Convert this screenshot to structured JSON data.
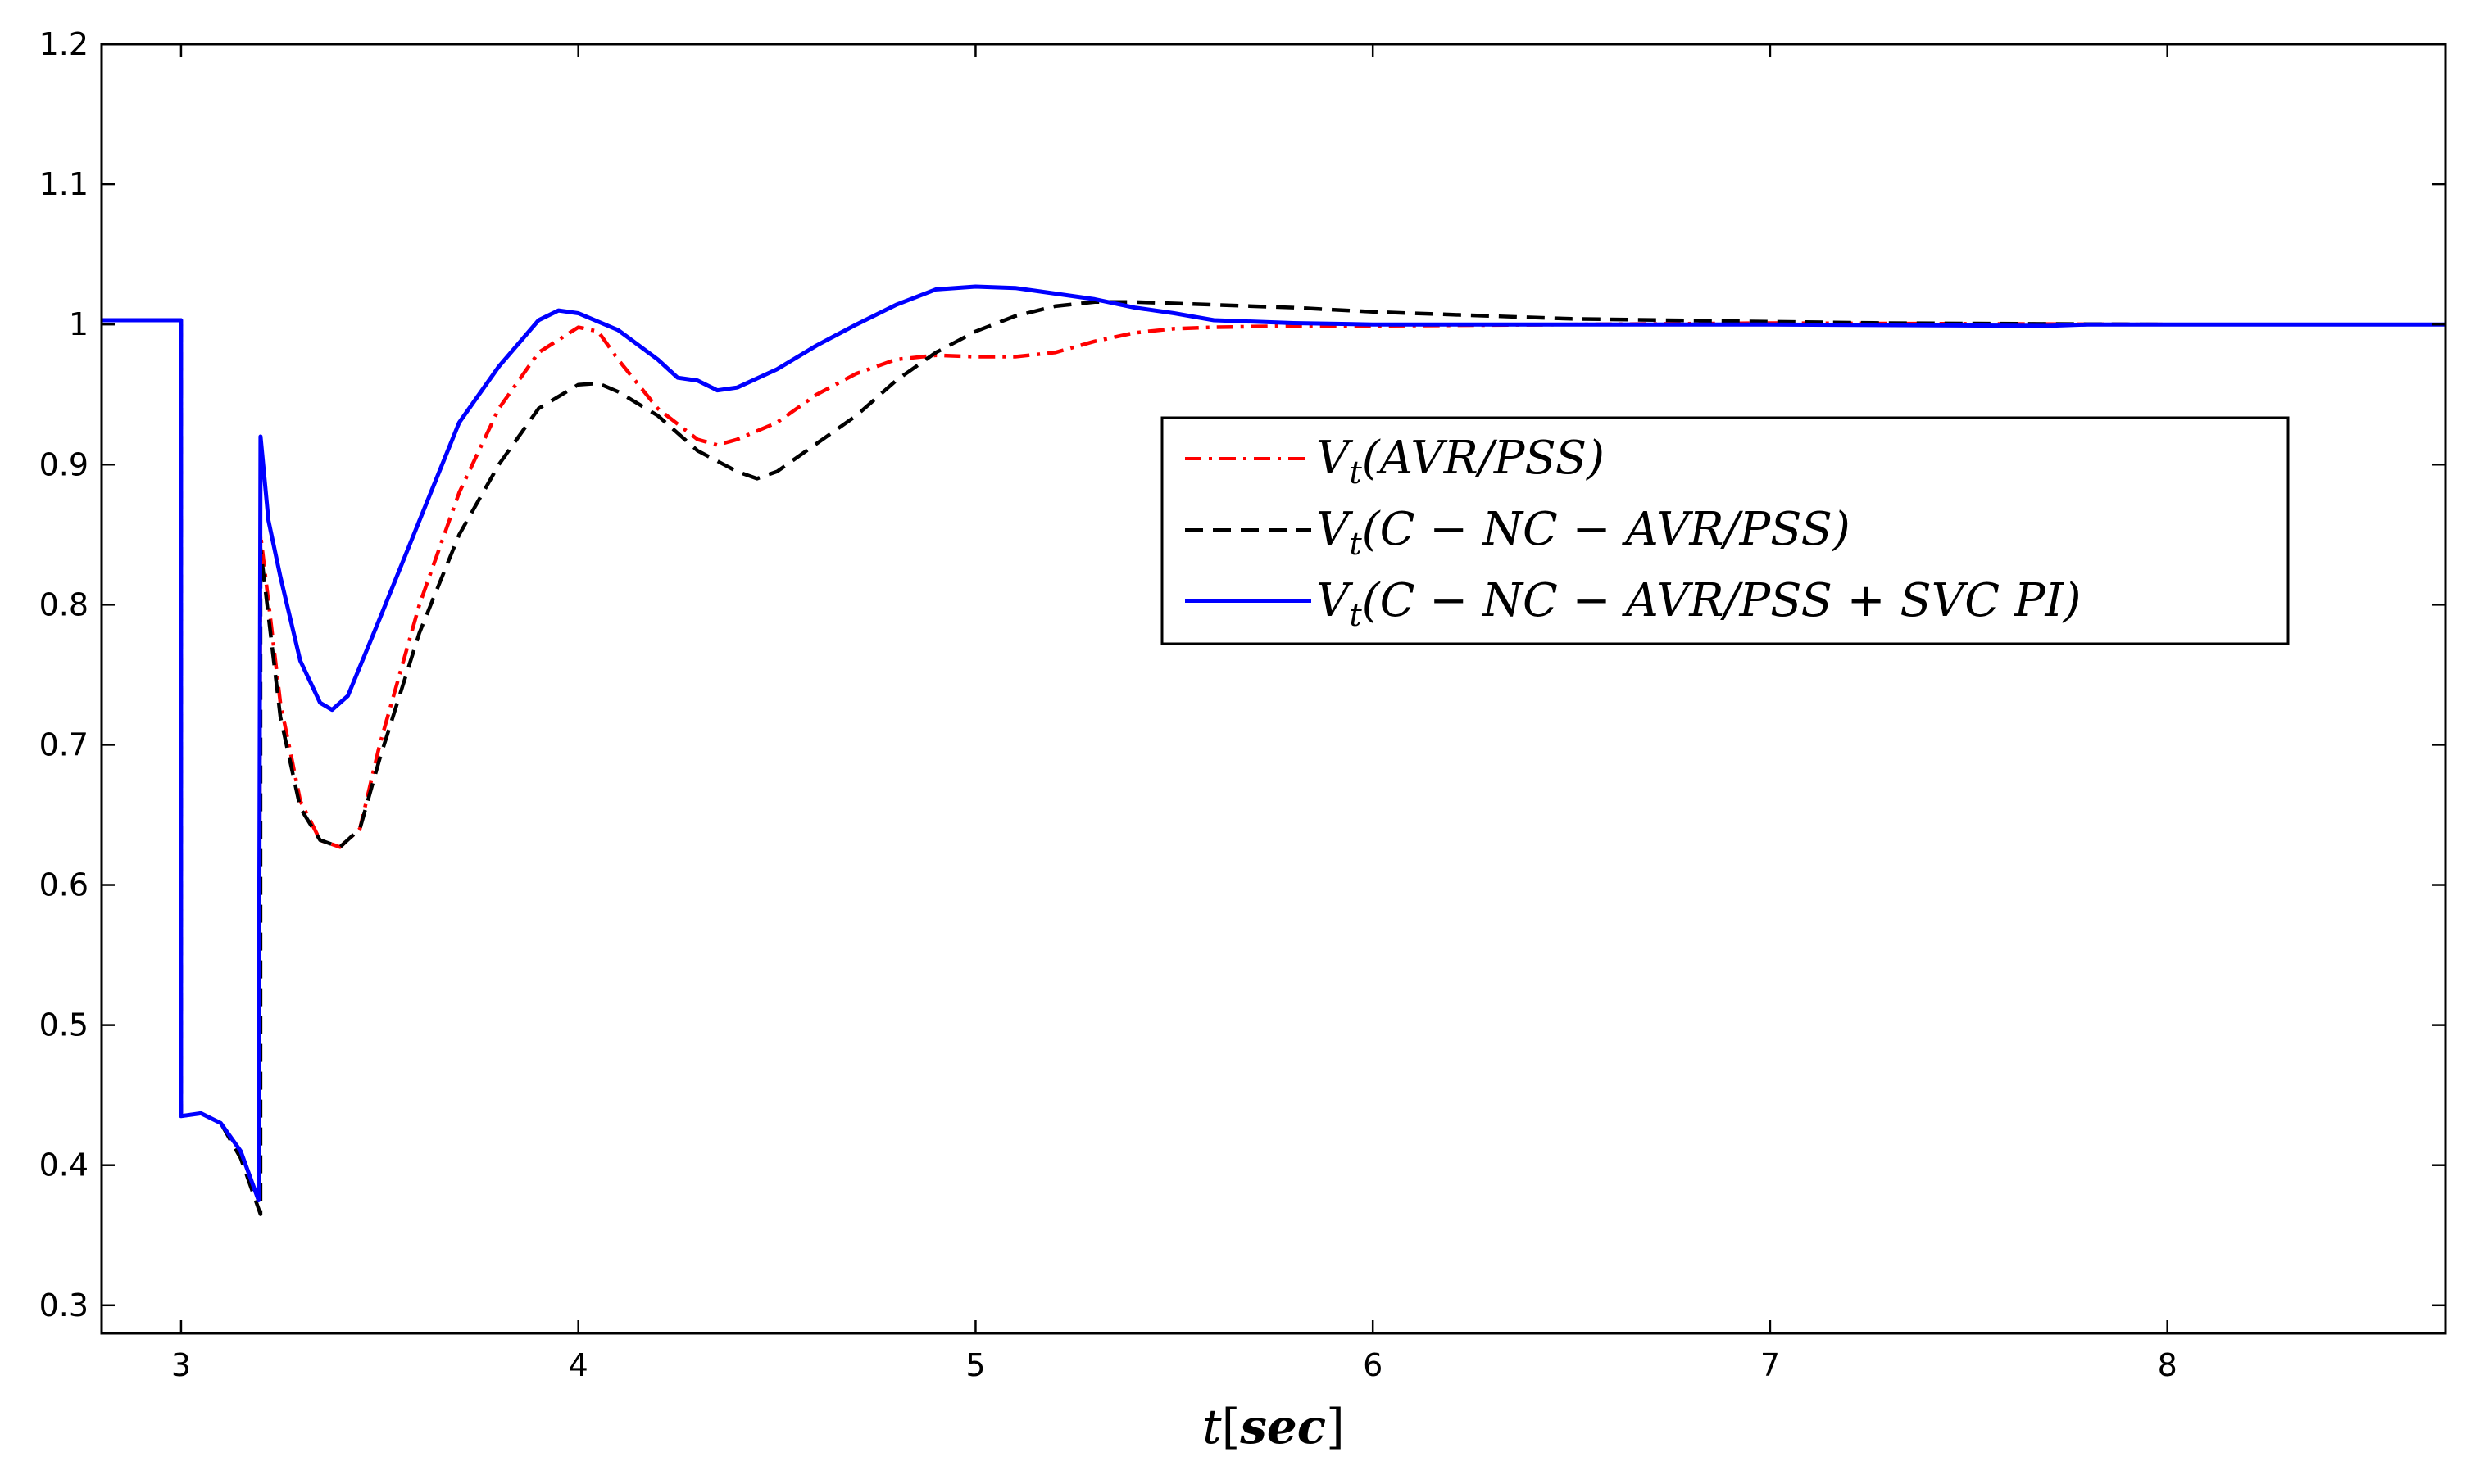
{
  "chart_data": {
    "type": "line",
    "title": "",
    "xlabel": "t[sec]",
    "xlabel_parts": {
      "var": "t",
      "open": "[",
      "unit": "sec",
      "close": "]"
    },
    "ylabel": "",
    "xlim": [
      2.8,
      8.7
    ],
    "ylim": [
      0.28,
      1.2
    ],
    "xticks": [
      3,
      4,
      5,
      6,
      7,
      8
    ],
    "yticks": [
      0.3,
      0.4,
      0.5,
      0.6,
      0.7,
      0.8,
      0.9,
      1.0,
      1.1,
      1.2
    ],
    "ytick_labels": [
      "0.3",
      "0.4",
      "0.5",
      "0.6",
      "0.7",
      "0.8",
      "0.9",
      "1",
      "1.1",
      "1.2"
    ],
    "grid": false,
    "legend_position": "center-right",
    "series": [
      {
        "name": "Vt(AVR/PSS)",
        "legend_label": {
          "sym": "V",
          "sub": "t",
          "args": "(AVR/PSS)"
        },
        "color": "#ff0000",
        "style": "dashdot",
        "points": [
          [
            2.8,
            1.003
          ],
          [
            3.0,
            1.003
          ],
          [
            3.0,
            0.435
          ],
          [
            3.05,
            0.437
          ],
          [
            3.1,
            0.43
          ],
          [
            3.15,
            0.41
          ],
          [
            3.195,
            0.375
          ],
          [
            3.2,
            0.85
          ],
          [
            3.25,
            0.73
          ],
          [
            3.3,
            0.66
          ],
          [
            3.35,
            0.632
          ],
          [
            3.4,
            0.627
          ],
          [
            3.45,
            0.64
          ],
          [
            3.5,
            0.7
          ],
          [
            3.6,
            0.8
          ],
          [
            3.7,
            0.88
          ],
          [
            3.8,
            0.94
          ],
          [
            3.9,
            0.98
          ],
          [
            4.0,
            0.998
          ],
          [
            4.05,
            0.995
          ],
          [
            4.1,
            0.975
          ],
          [
            4.2,
            0.94
          ],
          [
            4.3,
            0.918
          ],
          [
            4.35,
            0.914
          ],
          [
            4.4,
            0.918
          ],
          [
            4.5,
            0.93
          ],
          [
            4.6,
            0.95
          ],
          [
            4.7,
            0.965
          ],
          [
            4.8,
            0.975
          ],
          [
            4.9,
            0.978
          ],
          [
            5.0,
            0.977
          ],
          [
            5.1,
            0.977
          ],
          [
            5.2,
            0.98
          ],
          [
            5.3,
            0.988
          ],
          [
            5.4,
            0.994
          ],
          [
            5.5,
            0.997
          ],
          [
            5.6,
            0.998
          ],
          [
            5.8,
            0.999
          ],
          [
            6.0,
            0.999
          ],
          [
            6.5,
            1.0
          ],
          [
            7.0,
            1.001
          ],
          [
            8.0,
            1.0
          ],
          [
            8.7,
            1.0
          ]
        ]
      },
      {
        "name": "Vt(C-NC-AVR/PSS)",
        "legend_label": {
          "sym": "V",
          "sub": "t",
          "args": "(C − NC − AVR/PSS)"
        },
        "color": "#000000",
        "style": "dashed",
        "points": [
          [
            2.8,
            1.003
          ],
          [
            3.0,
            1.003
          ],
          [
            3.0,
            0.435
          ],
          [
            3.05,
            0.437
          ],
          [
            3.1,
            0.43
          ],
          [
            3.15,
            0.405
          ],
          [
            3.2,
            0.365
          ],
          [
            3.2,
            0.84
          ],
          [
            3.25,
            0.72
          ],
          [
            3.3,
            0.655
          ],
          [
            3.35,
            0.632
          ],
          [
            3.4,
            0.627
          ],
          [
            3.45,
            0.64
          ],
          [
            3.5,
            0.69
          ],
          [
            3.6,
            0.78
          ],
          [
            3.7,
            0.85
          ],
          [
            3.8,
            0.9
          ],
          [
            3.9,
            0.94
          ],
          [
            4.0,
            0.957
          ],
          [
            4.05,
            0.958
          ],
          [
            4.1,
            0.952
          ],
          [
            4.2,
            0.935
          ],
          [
            4.3,
            0.91
          ],
          [
            4.4,
            0.895
          ],
          [
            4.45,
            0.89
          ],
          [
            4.5,
            0.895
          ],
          [
            4.6,
            0.915
          ],
          [
            4.7,
            0.935
          ],
          [
            4.8,
            0.96
          ],
          [
            4.9,
            0.98
          ],
          [
            5.0,
            0.995
          ],
          [
            5.1,
            1.006
          ],
          [
            5.2,
            1.013
          ],
          [
            5.3,
            1.016
          ],
          [
            5.4,
            1.016
          ],
          [
            5.5,
            1.015
          ],
          [
            5.6,
            1.014
          ],
          [
            5.8,
            1.012
          ],
          [
            6.0,
            1.009
          ],
          [
            6.5,
            1.004
          ],
          [
            7.0,
            1.002
          ],
          [
            7.3,
            1.001
          ],
          [
            8.0,
            1.0
          ],
          [
            8.7,
            1.0
          ]
        ]
      },
      {
        "name": "Vt(C-NC-AVR/PSS+SVC PI)",
        "legend_label": {
          "sym": "V",
          "sub": "t",
          "args": "(C − NC − AVR/PSS + SVC PI)"
        },
        "color": "#0000ff",
        "style": "solid",
        "points": [
          [
            2.8,
            1.003
          ],
          [
            3.0,
            1.003
          ],
          [
            3.0,
            0.435
          ],
          [
            3.05,
            0.437
          ],
          [
            3.1,
            0.43
          ],
          [
            3.15,
            0.41
          ],
          [
            3.195,
            0.375
          ],
          [
            3.2,
            0.92
          ],
          [
            3.22,
            0.86
          ],
          [
            3.25,
            0.82
          ],
          [
            3.3,
            0.76
          ],
          [
            3.35,
            0.73
          ],
          [
            3.38,
            0.725
          ],
          [
            3.42,
            0.735
          ],
          [
            3.5,
            0.79
          ],
          [
            3.6,
            0.86
          ],
          [
            3.7,
            0.93
          ],
          [
            3.8,
            0.97
          ],
          [
            3.9,
            1.003
          ],
          [
            3.95,
            1.01
          ],
          [
            4.0,
            1.008
          ],
          [
            4.1,
            0.996
          ],
          [
            4.2,
            0.975
          ],
          [
            4.25,
            0.962
          ],
          [
            4.3,
            0.96
          ],
          [
            4.35,
            0.953
          ],
          [
            4.4,
            0.955
          ],
          [
            4.5,
            0.968
          ],
          [
            4.6,
            0.985
          ],
          [
            4.7,
            1.0
          ],
          [
            4.8,
            1.014
          ],
          [
            4.9,
            1.025
          ],
          [
            5.0,
            1.027
          ],
          [
            5.1,
            1.026
          ],
          [
            5.2,
            1.022
          ],
          [
            5.3,
            1.018
          ],
          [
            5.4,
            1.012
          ],
          [
            5.5,
            1.008
          ],
          [
            5.6,
            1.003
          ],
          [
            5.8,
            1.001
          ],
          [
            6.0,
            1.0
          ],
          [
            7.0,
            1.0
          ],
          [
            7.7,
            0.999
          ],
          [
            7.8,
            1.0
          ],
          [
            8.7,
            1.0
          ]
        ]
      }
    ]
  }
}
